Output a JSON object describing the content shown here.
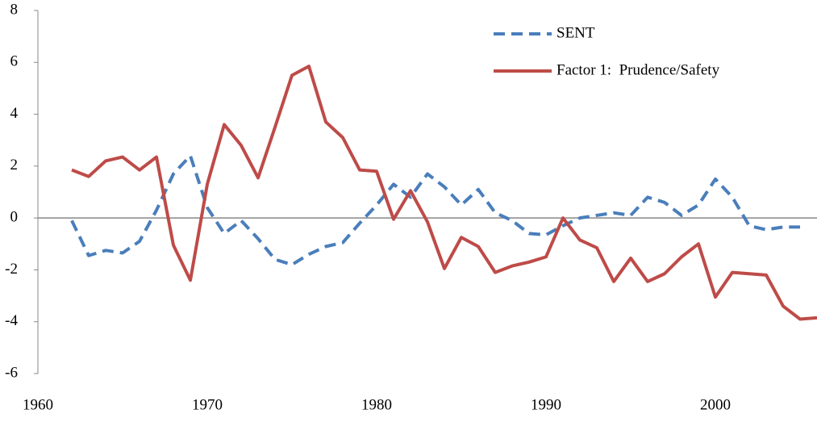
{
  "chart_data": {
    "type": "line",
    "x": [
      1962,
      1963,
      1964,
      1965,
      1966,
      1967,
      1968,
      1969,
      1970,
      1971,
      1972,
      1973,
      1974,
      1975,
      1976,
      1977,
      1978,
      1979,
      1980,
      1981,
      1982,
      1983,
      1984,
      1985,
      1986,
      1987,
      1988,
      1989,
      1990,
      1991,
      1992,
      1993,
      1994,
      1995,
      1996,
      1997,
      1998,
      1999,
      2000,
      2001,
      2002,
      2003,
      2004,
      2005,
      2006
    ],
    "series": [
      {
        "name": "SENT",
        "color": "#4a7ebb",
        "dashed": true,
        "values": [
          -0.1,
          -1.45,
          -1.25,
          -1.35,
          -0.9,
          0.3,
          1.7,
          2.4,
          0.4,
          -0.6,
          -0.1,
          -0.8,
          -1.6,
          -1.8,
          -1.4,
          -1.1,
          -0.95,
          -0.2,
          0.5,
          1.3,
          0.8,
          1.7,
          1.2,
          0.5,
          1.1,
          0.2,
          -0.1,
          -0.6,
          -0.65,
          -0.3,
          0.0,
          0.1,
          0.2,
          0.1,
          0.8,
          0.6,
          0.1,
          0.5,
          1.5,
          0.8,
          -0.3,
          -0.45,
          -0.35,
          -0.35,
          null
        ]
      },
      {
        "name": "Factor 1:  Prudence/Safety",
        "color": "#be4b48",
        "dashed": false,
        "values": [
          1.85,
          1.6,
          2.2,
          2.35,
          1.85,
          2.35,
          -1.05,
          -2.4,
          1.3,
          3.6,
          2.8,
          1.55,
          3.5,
          5.5,
          5.85,
          3.7,
          3.1,
          1.85,
          1.8,
          -0.05,
          1.05,
          -0.15,
          -1.95,
          -0.75,
          -1.1,
          -2.1,
          -1.85,
          -1.7,
          -1.5,
          0.0,
          -0.85,
          -1.15,
          -2.45,
          -1.55,
          -2.45,
          -2.15,
          -1.5,
          -1.0,
          -3.05,
          -2.1,
          -2.15,
          -2.2,
          -3.4,
          -3.9,
          -3.85
        ]
      }
    ],
    "xlim": [
      1960,
      2006
    ],
    "xticks": [
      1960,
      1970,
      1980,
      1990,
      2000
    ],
    "ylim": [
      -6,
      8
    ],
    "yticks": [
      -6,
      -4,
      -2,
      0,
      2,
      4,
      6,
      8
    ],
    "legend": "top-right"
  }
}
